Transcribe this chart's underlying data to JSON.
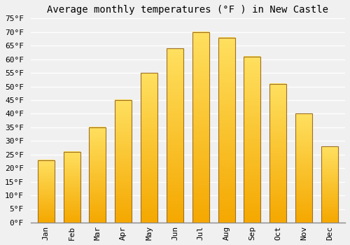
{
  "title": "Average monthly temperatures (°F ) in New Castle",
  "months": [
    "Jan",
    "Feb",
    "Mar",
    "Apr",
    "May",
    "Jun",
    "Jul",
    "Aug",
    "Sep",
    "Oct",
    "Nov",
    "Dec"
  ],
  "values": [
    23,
    26,
    35,
    45,
    55,
    64,
    70,
    68,
    61,
    51,
    40,
    28
  ],
  "bar_color_bottom": "#F5A800",
  "bar_color_top": "#FFE060",
  "bar_edge_color": "#A07020",
  "ylim": [
    0,
    75
  ],
  "yticks": [
    0,
    5,
    10,
    15,
    20,
    25,
    30,
    35,
    40,
    45,
    50,
    55,
    60,
    65,
    70,
    75
  ],
  "background_color": "#f0f0f0",
  "grid_color": "#ffffff",
  "title_fontsize": 10,
  "tick_fontsize": 8,
  "font_family": "monospace"
}
